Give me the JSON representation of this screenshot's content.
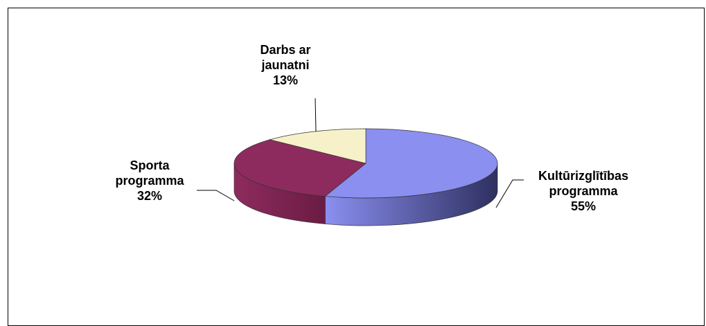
{
  "chart_data": {
    "type": "pie",
    "style": "3d",
    "title": "",
    "slices": [
      {
        "label_lines": [
          "Kultūrizglītības",
          "programma"
        ],
        "value": 55,
        "value_label": "55%",
        "color": "#8b8ff0",
        "side_color": "#4a4d9c"
      },
      {
        "label_lines": [
          "Sporta",
          "programma"
        ],
        "value": 32,
        "value_label": "32%",
        "color": "#8e2b5e",
        "side_color": "#6b1f46"
      },
      {
        "label_lines": [
          "Darbs ar",
          "jaunatni"
        ],
        "value": 13,
        "value_label": "13%",
        "color": "#f6f1c8",
        "side_color": "#d8d2a6"
      }
    ],
    "legend": "none"
  }
}
